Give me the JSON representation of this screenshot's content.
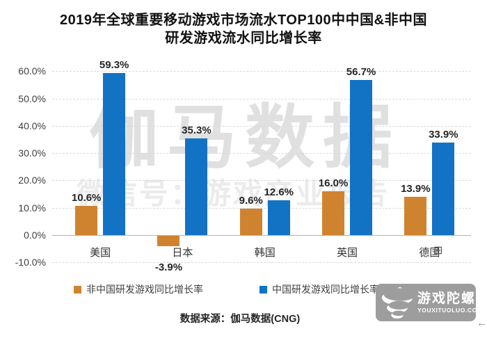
{
  "title": {
    "line1": "2019年全球重要移动游戏市场流水TOP100中中国&非中国",
    "line2": "研发游戏流水同比增长率"
  },
  "chart_data": {
    "type": "bar",
    "categories": [
      "美国",
      "日本",
      "韩国",
      "英国",
      "德国"
    ],
    "series": [
      {
        "name": "非中国研发游戏同比增长率",
        "color": "#D0832F",
        "values": [
          10.6,
          -3.9,
          9.6,
          16.0,
          13.9
        ]
      },
      {
        "name": "中国研发游戏同比增长率",
        "color": "#1272C4",
        "values": [
          59.3,
          35.3,
          12.6,
          56.7,
          33.9
        ]
      }
    ],
    "ylim": [
      -10,
      60
    ],
    "ytick_step": 10,
    "ytick_labels": [
      "60.0%",
      "50.0%",
      "40.0%",
      "30.0%",
      "20.0%",
      "10.0%",
      "0.0%",
      "-10.0%"
    ],
    "grid": "horizontal-dashed",
    "legend_position": "bottom",
    "data_label_format": "one_decimal_percent"
  },
  "watermark": {
    "line1": "伽马数据",
    "line2": "微信号：游戏产业报告"
  },
  "source_note": "数据来源：伽马数据(CNG)",
  "logo": {
    "name": "游戏陀螺",
    "domain": "YOUXITUOLUO.COM"
  },
  "misc": {
    "grid_icon": "⊞",
    "back_arrow": "←"
  },
  "colors": {
    "bar_orange": "#D0832F",
    "bar_blue": "#1272C4",
    "gridline": "#D9D9D9",
    "axis": "#B3B3B3",
    "watermark": "#E0E0E0",
    "logo_bg": "#9D9D9D"
  }
}
